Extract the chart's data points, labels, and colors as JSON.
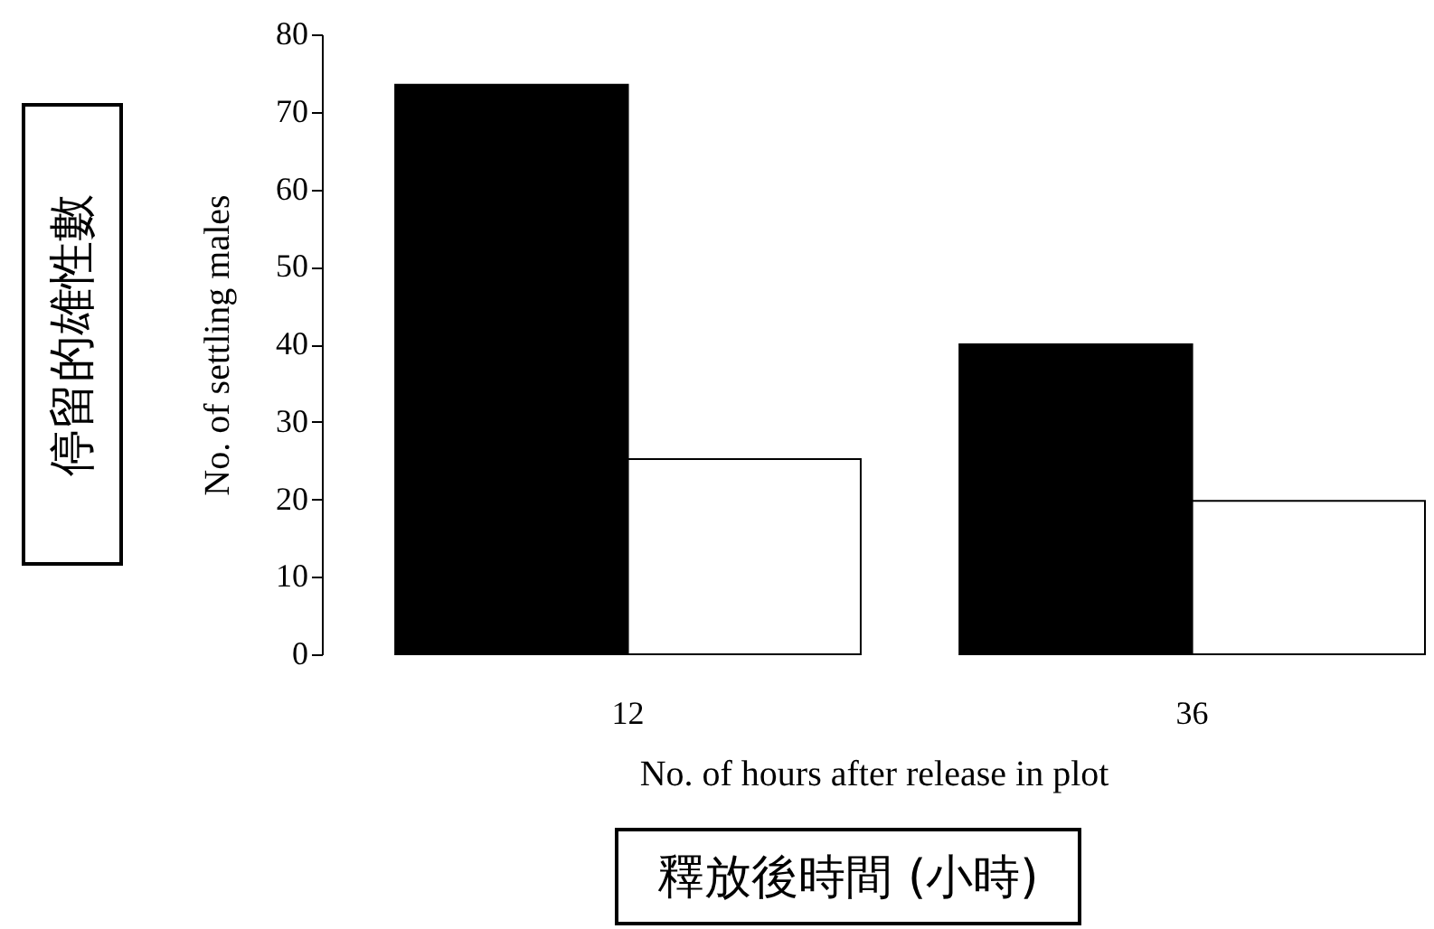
{
  "chart_data": {
    "type": "bar",
    "categories": [
      "12",
      "36"
    ],
    "series": [
      {
        "color": "#000000",
        "values": [
          73.5,
          40
        ]
      },
      {
        "color": "#ffffff",
        "values": [
          25.2,
          19.8
        ]
      }
    ],
    "ylabel": "No. of settling males",
    "xlabel": "No. of hours after release in plot",
    "ylim": [
      0,
      80
    ],
    "yticks": [
      0,
      10,
      20,
      30,
      40,
      50,
      60,
      70,
      80
    ],
    "grid": false,
    "annotations": [
      "停留的雄性數",
      "釋放後時間 (小時)"
    ]
  }
}
